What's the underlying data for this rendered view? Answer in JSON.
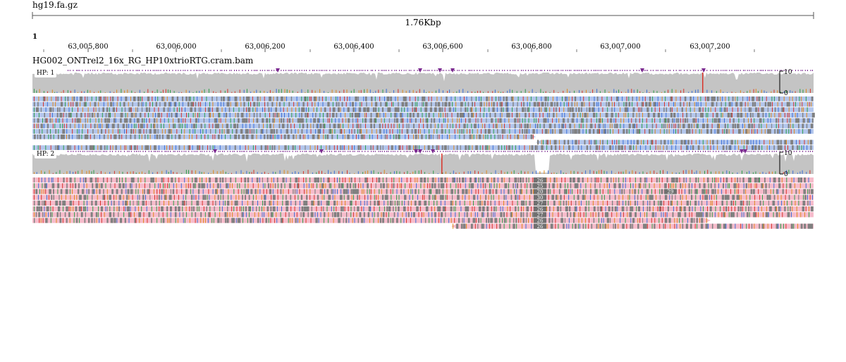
{
  "assembly_file": "hg19.fa.gz",
  "region_span": "1.76Kbp",
  "chromosome": "1",
  "ruler_ticks": [
    "63,005,800",
    "63,006,000",
    "63,006,200",
    "63,006,400",
    "63,006,600",
    "63,006,800",
    "63,007,000",
    "63,007,200"
  ],
  "track_name": "HG002_ONTrel2_16x_RG_HP10xtrioRTG.cram.bam",
  "haplotypes": [
    {
      "label": "HP: 1",
      "coverage_scale_max": "10",
      "coverage_scale_min": "0",
      "read_color": "#b3c6ec"
    },
    {
      "label": "HP: 2",
      "coverage_scale_max": "10",
      "coverage_scale_min": "0",
      "read_color": "#f6bccb"
    }
  ],
  "insertion_labels": [
    "26",
    "25",
    "20",
    "30",
    "27",
    "26",
    "27",
    "26",
    "26"
  ],
  "far_insertion_label": "29",
  "colors": {
    "coverage": "#c4c4c4",
    "mismatch_A": "#2e9e4a",
    "mismatch_C": "#3b6fd8",
    "mismatch_G": "#e08a1e",
    "mismatch_T": "#d8342a",
    "deletion": "#808080",
    "insertion": "#7b2a90"
  }
}
